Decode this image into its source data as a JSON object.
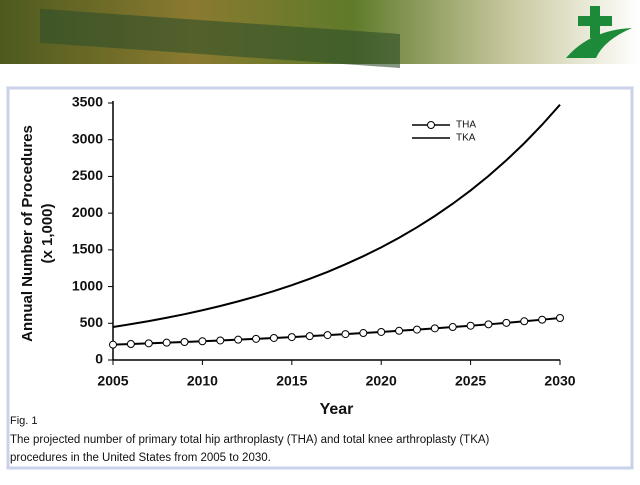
{
  "chart_data": {
    "type": "line",
    "x": [
      2005,
      2006,
      2007,
      2008,
      2009,
      2010,
      2011,
      2012,
      2013,
      2014,
      2015,
      2016,
      2017,
      2018,
      2019,
      2020,
      2021,
      2022,
      2023,
      2024,
      2025,
      2026,
      2027,
      2028,
      2029,
      2030
    ],
    "series": [
      {
        "name": "THA",
        "color": "#000000",
        "marker": "circle",
        "values": [
          209,
          218,
          227,
          236,
          245,
          255,
          266,
          277,
          288,
          300,
          312,
          325,
          339,
          353,
          367,
          382,
          398,
          414,
          431,
          449,
          467,
          486,
          506,
          527,
          549,
          572
        ]
      },
      {
        "name": "TKA",
        "color": "#000000",
        "marker": "none",
        "values": [
          450,
          488,
          530,
          575,
          624,
          677,
          735,
          798,
          866,
          939,
          1019,
          1106,
          1200,
          1303,
          1414,
          1534,
          1665,
          1807,
          1961,
          2128,
          2309,
          2506,
          2720,
          2952,
          3204,
          3477
        ]
      }
    ],
    "xlabel": "Year",
    "ylabel": [
      "Annual Number of Procedures",
      "(x 1,000)"
    ],
    "xlim": [
      2005,
      2030
    ],
    "xticks": [
      2005,
      2010,
      2015,
      2020,
      2025,
      2030
    ],
    "ylim": [
      0,
      3500
    ],
    "yticks": [
      0,
      500,
      1000,
      1500,
      2000,
      2500,
      3000,
      3500
    ],
    "grid": false,
    "legend": "top-right"
  },
  "caption": {
    "fig": "Fig. 1",
    "lines": [
      "The projected number of primary total hip arthroplasty (THA) and total knee arthroplasty (TKA)",
      "procedures in the United States from 2005 to 2030."
    ]
  }
}
